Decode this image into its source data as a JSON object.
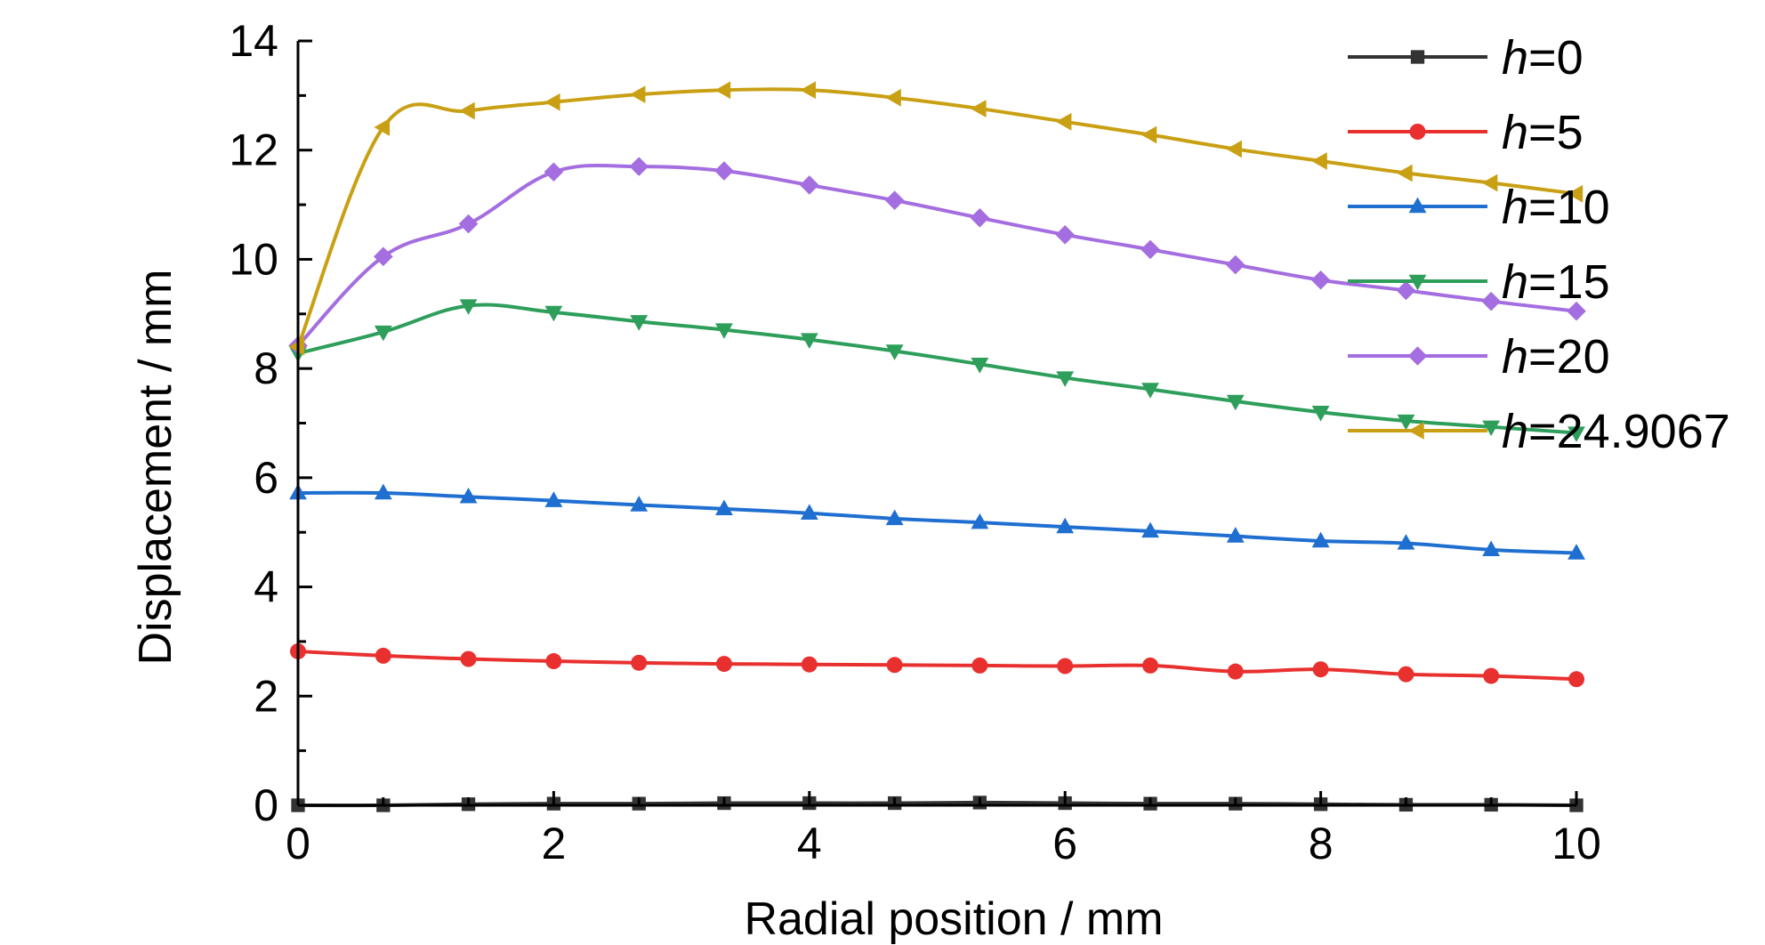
{
  "chart_data": {
    "type": "line",
    "title": "",
    "xlabel": "Radial position / mm",
    "ylabel": "Displacement / mm",
    "xlim": [
      0,
      10
    ],
    "ylim": [
      0,
      14
    ],
    "xticks": [
      0,
      2,
      4,
      6,
      8,
      10
    ],
    "yticks": [
      0,
      2,
      4,
      6,
      8,
      10,
      12,
      14
    ],
    "grid": false,
    "legend_position": "top-right",
    "x": [
      0,
      0.667,
      1.333,
      2,
      2.667,
      3.333,
      4,
      4.667,
      5.333,
      6,
      6.667,
      7.333,
      8,
      8.667,
      9.333,
      10
    ],
    "series": [
      {
        "name": "h=0",
        "legend_var": "h",
        "legend_value": "=0",
        "color": "#333333",
        "marker": "square",
        "values": [
          0.0,
          0.0,
          0.02,
          0.03,
          0.03,
          0.04,
          0.04,
          0.04,
          0.05,
          0.04,
          0.03,
          0.03,
          0.02,
          0.01,
          0.01,
          0.0
        ]
      },
      {
        "name": "h=5",
        "legend_var": "h",
        "legend_value": "=5",
        "color": "#e8312f",
        "marker": "circle",
        "values": [
          2.82,
          2.74,
          2.68,
          2.64,
          2.61,
          2.59,
          2.58,
          2.57,
          2.56,
          2.55,
          2.56,
          2.45,
          2.49,
          2.4,
          2.37,
          2.31
        ]
      },
      {
        "name": "h=10",
        "legend_var": "h",
        "legend_value": "=10",
        "color": "#1f6fd1",
        "marker": "triangle-up",
        "values": [
          5.72,
          5.72,
          5.65,
          5.58,
          5.5,
          5.43,
          5.35,
          5.25,
          5.18,
          5.1,
          5.02,
          4.93,
          4.84,
          4.8,
          4.68,
          4.62
        ]
      },
      {
        "name": "h=15",
        "legend_var": "h",
        "legend_value": "=15",
        "color": "#2e9e5b",
        "marker": "triangle-down",
        "values": [
          8.28,
          8.67,
          9.15,
          9.03,
          8.86,
          8.71,
          8.53,
          8.32,
          8.08,
          7.83,
          7.62,
          7.4,
          7.2,
          7.04,
          6.93,
          6.82
        ]
      },
      {
        "name": "h=20",
        "legend_var": "h",
        "legend_value": "=20",
        "color": "#a46ee0",
        "marker": "diamond",
        "values": [
          8.42,
          10.05,
          10.65,
          11.6,
          11.7,
          11.62,
          11.36,
          11.08,
          10.76,
          10.45,
          10.18,
          9.9,
          9.62,
          9.43,
          9.23,
          9.05
        ]
      },
      {
        "name": "h=24.9067",
        "legend_var": "h",
        "legend_value": "=24.9067",
        "color": "#c9a014",
        "marker": "triangle-left",
        "values": [
          8.4,
          12.42,
          12.72,
          12.88,
          13.02,
          13.1,
          13.1,
          12.96,
          12.76,
          12.52,
          12.28,
          12.02,
          11.8,
          11.58,
          11.4,
          11.2
        ]
      }
    ]
  }
}
